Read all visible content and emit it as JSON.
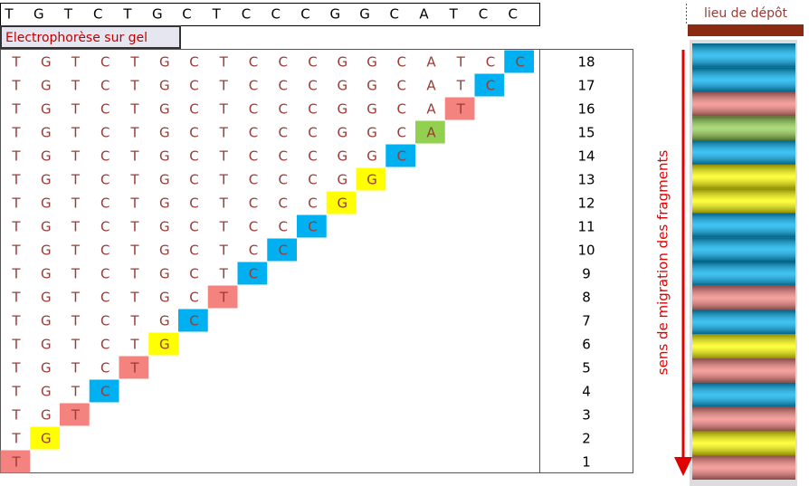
{
  "title": "Electrophorèse sur gel",
  "sequence": [
    "T",
    "G",
    "T",
    "C",
    "T",
    "G",
    "C",
    "T",
    "C",
    "C",
    "C",
    "G",
    "G",
    "C",
    "A",
    "T",
    "C",
    "C"
  ],
  "row_numbers": [
    18,
    17,
    16,
    15,
    14,
    13,
    12,
    11,
    10,
    9,
    8,
    7,
    6,
    5,
    4,
    3,
    2,
    1
  ],
  "base_colors": {
    "T": "#f4837f",
    "G": "#ffff00",
    "C": "#00b0f0",
    "A": "#92d050"
  },
  "deposit_label": "lieu de dépôt",
  "migration_label": "sens de migration des fragments"
}
